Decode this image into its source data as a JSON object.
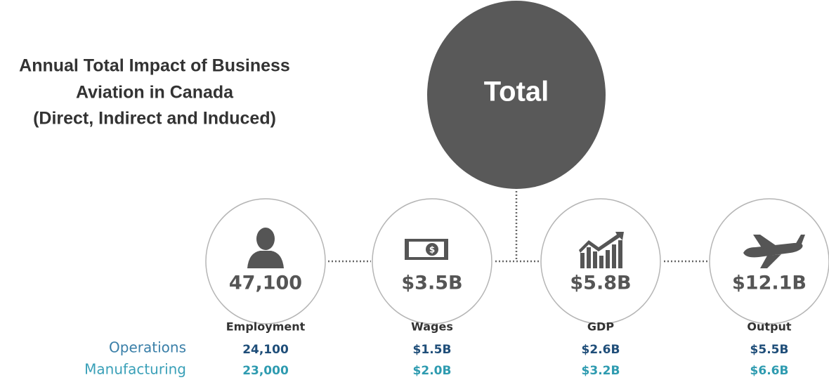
{
  "title": [
    "Annual Total Impact of Business",
    "Aviation in Canada",
    "(Direct, Indirect and Induced)"
  ],
  "hub": "Total",
  "row_labels": [
    "Operations",
    "Manufacturing"
  ],
  "metrics": [
    {
      "total": "47,100",
      "label": "Employment",
      "values": [
        "24,100",
        "23,000"
      ]
    },
    {
      "total": "$3.5B",
      "label": "Wages",
      "values": [
        "$1.5B",
        "$2.0B"
      ]
    },
    {
      "total": "$5.8B",
      "label": "GDP",
      "values": [
        "$2.6B",
        "$3.2B"
      ]
    },
    {
      "total": "$12.1B",
      "label": "Output",
      "values": [
        "$5.5B",
        "$6.6B"
      ]
    }
  ]
}
